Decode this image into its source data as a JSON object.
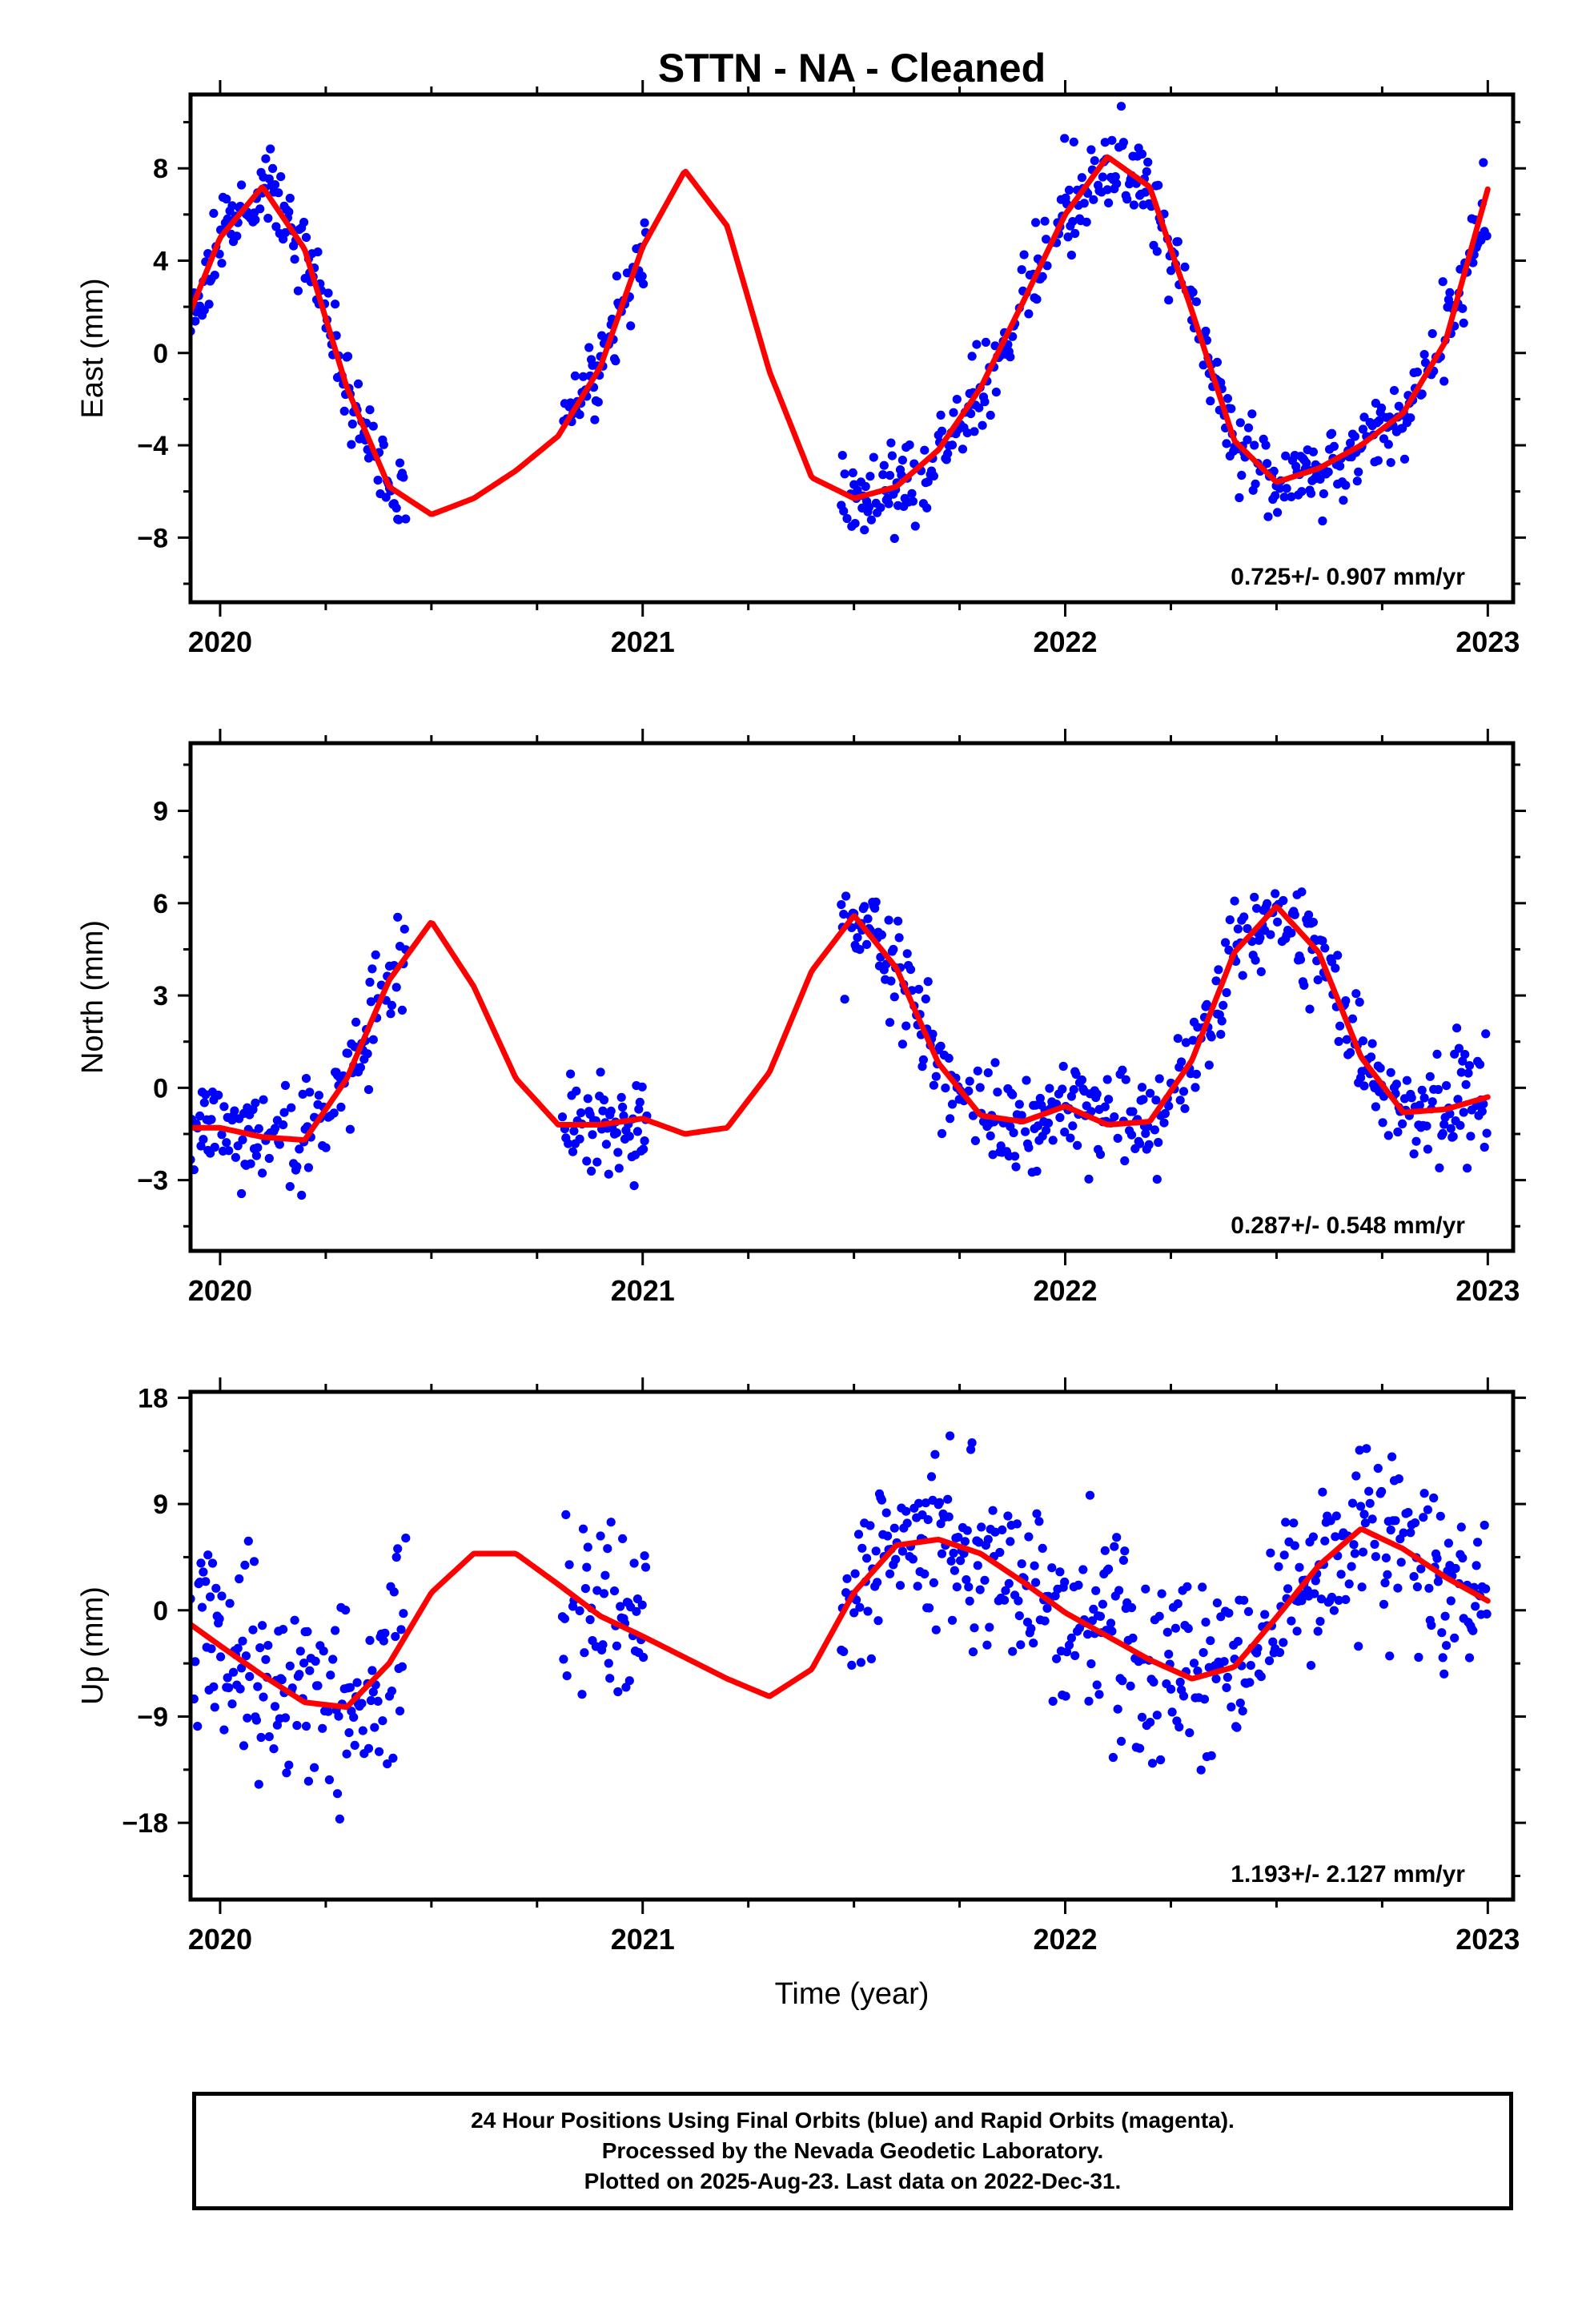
{
  "chart_data": [
    {
      "type": "scatter",
      "title": "STTN  - NA - Cleaned",
      "ylabel": "East (mm)",
      "xlabel": "",
      "xlim": [
        2019.93,
        2023.06
      ],
      "ylim": [
        -10.8,
        11.2
      ],
      "x_ticks": [
        2020,
        2021,
        2022,
        2023
      ],
      "y_ticks": [
        -8,
        -4,
        0,
        4,
        8
      ],
      "rate_label": "0.725+/- 0.907 mm/yr",
      "series": [
        {
          "role": "observations",
          "color": "#0000ff",
          "seed": 11,
          "noise": 0.9,
          "segments": [
            [
              2019.93,
              2020.44
            ],
            [
              2020.81,
              2021.01
            ],
            [
              2021.47,
              2023.0
            ]
          ]
        },
        {
          "role": "fit",
          "color": "#ff0000",
          "x": [
            2019.93,
            2020.0,
            2020.1,
            2020.2,
            2020.3,
            2020.4,
            2020.5,
            2020.6,
            2020.7,
            2020.8,
            2020.9,
            2021.0,
            2021.1,
            2021.2,
            2021.3,
            2021.4,
            2021.5,
            2021.6,
            2021.7,
            2021.8,
            2021.9,
            2022.0,
            2022.1,
            2022.2,
            2022.3,
            2022.4,
            2022.5,
            2022.6,
            2022.7,
            2022.8,
            2022.9,
            2023.0
          ],
          "y": [
            1.8,
            5.0,
            7.2,
            4.5,
            -1.5,
            -5.8,
            -7.0,
            -6.3,
            -5.1,
            -3.6,
            -0.6,
            4.6,
            7.9,
            5.5,
            -0.8,
            -5.4,
            -6.3,
            -5.8,
            -4.2,
            -1.5,
            2.2,
            6.0,
            8.5,
            7.2,
            1.8,
            -3.8,
            -5.6,
            -5.0,
            -4.0,
            -2.6,
            0.5,
            7.1
          ]
        }
      ]
    },
    {
      "type": "scatter",
      "ylabel": "North (mm)",
      "xlabel": "",
      "xlim": [
        2019.93,
        2023.06
      ],
      "ylim": [
        -5.3,
        11.2
      ],
      "x_ticks": [
        2020,
        2021,
        2022,
        2023
      ],
      "y_ticks": [
        -3,
        0,
        3,
        6,
        9
      ],
      "rate_label": "0.287+/- 0.548 mm/yr",
      "series": [
        {
          "role": "observations",
          "color": "#0000ff",
          "seed": 23,
          "noise": 0.8,
          "segments": [
            [
              2019.93,
              2020.44
            ],
            [
              2020.81,
              2021.01
            ],
            [
              2021.47,
              2023.0
            ]
          ]
        },
        {
          "role": "fit",
          "color": "#ff0000",
          "x": [
            2019.93,
            2020.0,
            2020.1,
            2020.2,
            2020.3,
            2020.4,
            2020.5,
            2020.6,
            2020.7,
            2020.8,
            2020.9,
            2021.0,
            2021.1,
            2021.2,
            2021.3,
            2021.4,
            2021.5,
            2021.6,
            2021.7,
            2021.8,
            2021.9,
            2022.0,
            2022.1,
            2022.2,
            2022.3,
            2022.4,
            2022.5,
            2022.6,
            2022.7,
            2022.8,
            2022.9,
            2023.0
          ],
          "y": [
            -1.3,
            -1.3,
            -1.6,
            -1.7,
            0.3,
            3.5,
            5.4,
            3.3,
            0.3,
            -1.2,
            -1.2,
            -1.0,
            -1.5,
            -1.3,
            0.5,
            3.8,
            5.6,
            3.9,
            0.8,
            -0.9,
            -1.1,
            -0.6,
            -1.2,
            -1.1,
            0.9,
            4.4,
            5.9,
            4.4,
            1.0,
            -0.8,
            -0.7,
            -0.3
          ]
        }
      ]
    },
    {
      "type": "scatter",
      "ylabel": "Up (mm)",
      "xlabel": "Time (year)",
      "xlim": [
        2019.93,
        2023.06
      ],
      "ylim": [
        -24.5,
        18.5
      ],
      "x_ticks": [
        2020,
        2021,
        2022,
        2023
      ],
      "y_ticks": [
        -18,
        -9,
        0,
        9,
        18
      ],
      "rate_label": "1.193+/- 2.127 mm/yr",
      "series": [
        {
          "role": "observations",
          "color": "#0000ff",
          "seed": 37,
          "noise": 4.0,
          "segments": [
            [
              2019.93,
              2020.44
            ],
            [
              2020.81,
              2021.01
            ],
            [
              2021.47,
              2023.0
            ]
          ]
        },
        {
          "role": "fit",
          "color": "#ff0000",
          "x": [
            2019.93,
            2020.0,
            2020.1,
            2020.2,
            2020.3,
            2020.4,
            2020.5,
            2020.6,
            2020.7,
            2020.8,
            2020.9,
            2021.0,
            2021.1,
            2021.2,
            2021.3,
            2021.4,
            2021.5,
            2021.6,
            2021.7,
            2021.8,
            2021.9,
            2022.0,
            2022.1,
            2022.2,
            2022.3,
            2022.4,
            2022.5,
            2022.6,
            2022.7,
            2022.8,
            2022.9,
            2023.0
          ],
          "y": [
            -1.2,
            -3.0,
            -5.5,
            -7.8,
            -8.2,
            -4.5,
            1.5,
            4.8,
            4.8,
            2.2,
            -0.5,
            -2.2,
            -4.0,
            -5.8,
            -7.3,
            -5.0,
            1.5,
            5.5,
            6.0,
            4.8,
            2.4,
            -0.2,
            -2.2,
            -4.2,
            -5.8,
            -4.8,
            -0.6,
            3.8,
            6.9,
            5.2,
            2.8,
            0.8
          ]
        }
      ]
    }
  ],
  "footer": {
    "line1": "24 Hour Positions Using Final Orbits (blue) and Rapid Orbits (magenta).",
    "line2": "Processed by the Nevada Geodetic Laboratory.",
    "line3": "Plotted on 2025-Aug-23. Last data on 2022-Dec-31."
  }
}
